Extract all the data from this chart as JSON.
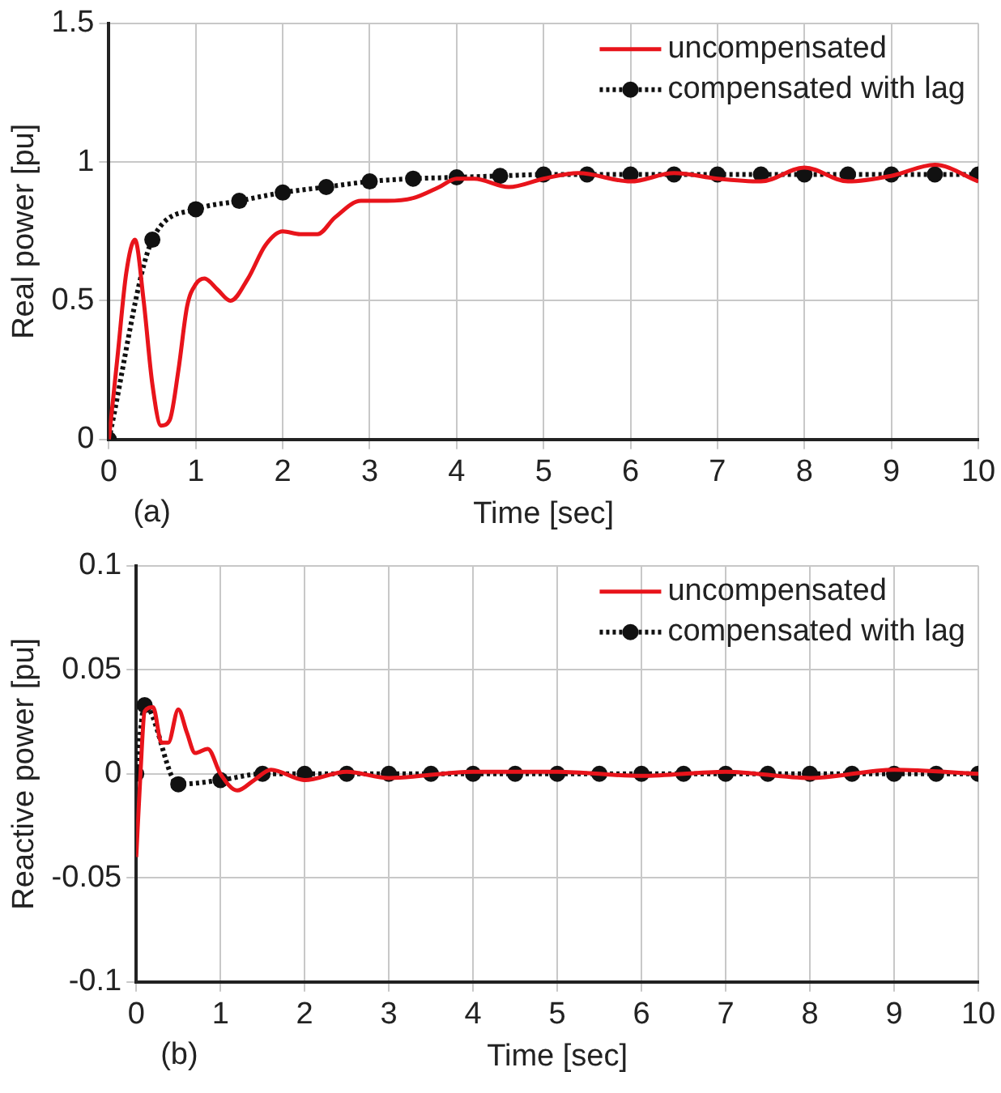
{
  "chart_data": [
    {
      "type": "line",
      "xlabel": "Time [sec]",
      "ylabel": "Real power [pu]",
      "annotations": [
        "(a)"
      ],
      "xlim": [
        0,
        10
      ],
      "xticks": [
        0,
        1,
        2,
        3,
        4,
        5,
        6,
        7,
        8,
        9,
        10
      ],
      "ylim": [
        0,
        1.5
      ],
      "yticks": [
        0,
        0.5,
        1,
        1.5
      ],
      "grid": true,
      "legend": "top right",
      "series": [
        {
          "name": "uncompensated",
          "color": "#e8141b",
          "line_style": "solid",
          "marker": "none",
          "x": [
            0,
            0.1,
            0.2,
            0.3,
            0.4,
            0.5,
            0.6,
            0.7,
            0.8,
            0.9,
            1.0,
            1.1,
            1.25,
            1.4,
            1.6,
            1.8,
            2.0,
            2.2,
            2.4,
            2.6,
            2.9,
            3.2,
            3.5,
            3.8,
            4,
            4.2,
            4.6,
            5.0,
            5.4,
            6,
            6.5,
            7.0,
            7.5,
            8,
            8.5,
            9,
            9.5,
            10
          ],
          "values": [
            0,
            0.3,
            0.6,
            0.72,
            0.5,
            0.2,
            0.05,
            0.07,
            0.25,
            0.48,
            0.56,
            0.58,
            0.54,
            0.5,
            0.58,
            0.7,
            0.75,
            0.74,
            0.74,
            0.8,
            0.86,
            0.86,
            0.87,
            0.91,
            0.94,
            0.94,
            0.91,
            0.94,
            0.96,
            0.93,
            0.96,
            0.94,
            0.93,
            0.98,
            0.93,
            0.95,
            0.99,
            0.93
          ]
        },
        {
          "name": "compensated with lag",
          "color": "#111111",
          "line_style": "dotted",
          "marker": "circle",
          "x": [
            0,
            0.5,
            1,
            1.5,
            2,
            2.5,
            3,
            3.5,
            4,
            4.5,
            5,
            5.5,
            6,
            6.5,
            7,
            7.5,
            8,
            8.5,
            9,
            9.5,
            10
          ],
          "values": [
            0,
            0.72,
            0.83,
            0.86,
            0.89,
            0.91,
            0.93,
            0.94,
            0.945,
            0.95,
            0.955,
            0.955,
            0.955,
            0.955,
            0.955,
            0.955,
            0.955,
            0.955,
            0.955,
            0.955,
            0.955
          ]
        }
      ]
    },
    {
      "type": "line",
      "xlabel": "Time [sec]",
      "ylabel": "Reactive power [pu]",
      "annotations": [
        "(b)"
      ],
      "xlim": [
        0,
        10
      ],
      "xticks": [
        0,
        1,
        2,
        3,
        4,
        5,
        6,
        7,
        8,
        9,
        10
      ],
      "ylim": [
        -0.1,
        0.1
      ],
      "yticks": [
        -0.1,
        -0.05,
        0,
        0.05,
        0.1
      ],
      "grid": true,
      "legend": "top right",
      "series": [
        {
          "name": "uncompensated",
          "color": "#e8141b",
          "line_style": "solid",
          "marker": "none",
          "x": [
            0,
            0.05,
            0.1,
            0.2,
            0.3,
            0.38,
            0.5,
            0.6,
            0.7,
            0.85,
            1.0,
            1.2,
            1.4,
            1.6,
            2,
            2.5,
            3,
            4,
            5,
            6,
            7,
            8,
            9,
            10
          ],
          "values": [
            -0.04,
            0.0,
            0.03,
            0.032,
            0.015,
            0.015,
            0.031,
            0.02,
            0.01,
            0.012,
            0.0,
            -0.008,
            -0.003,
            0.002,
            -0.003,
            0.001,
            -0.002,
            0.001,
            0.001,
            -0.001,
            0.001,
            -0.002,
            0.002,
            0
          ]
        },
        {
          "name": "compensated with lag",
          "color": "#111111",
          "line_style": "dotted",
          "marker": "circle",
          "x": [
            0,
            0.1,
            0.5,
            1,
            1.5,
            2,
            2.5,
            3,
            3.5,
            4,
            4.5,
            5,
            5.5,
            6,
            6.5,
            7,
            7.5,
            8,
            8.5,
            9,
            9.5,
            10
          ],
          "values": [
            0,
            0.033,
            -0.005,
            -0.003,
            0,
            0,
            0,
            0,
            0,
            0,
            0,
            0,
            0,
            0,
            0,
            0,
            0,
            0,
            0,
            0,
            0,
            0
          ]
        }
      ]
    }
  ]
}
